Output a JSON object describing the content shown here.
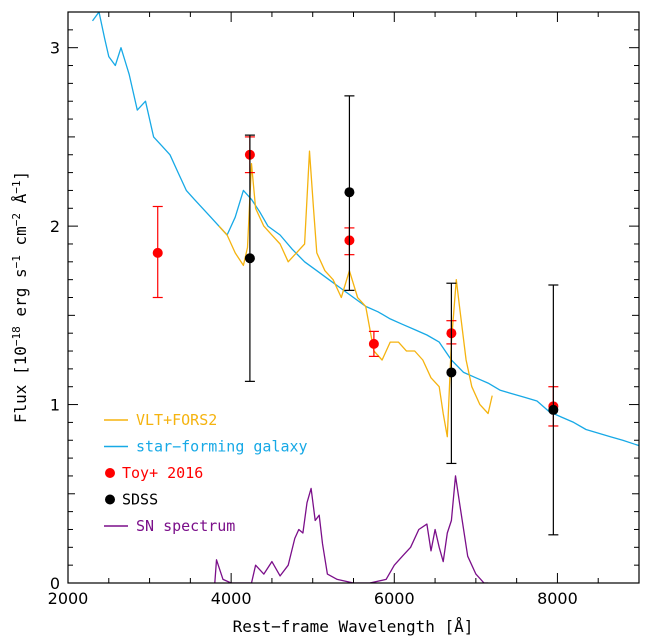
{
  "chart_data": {
    "type": "line",
    "title": "",
    "xlabel": "Rest−frame Wavelength [Å]",
    "ylabel_parts": [
      "Flux [10",
      "−18",
      " erg s",
      "−1",
      " cm",
      "−2",
      " Å",
      "−1",
      "]"
    ],
    "xlim": [
      2000,
      9000
    ],
    "ylim": [
      0,
      3.2
    ],
    "xticks": [
      2000,
      4000,
      6000,
      8000
    ],
    "xtick_labels": [
      "2000",
      "4000",
      "6000",
      "8000"
    ],
    "yticks": [
      0,
      1,
      2,
      3
    ],
    "ytick_labels": [
      "0",
      "1",
      "2",
      "3"
    ],
    "grid": false,
    "legend_position": "bottom-left",
    "colors": {
      "vlt": "#f5b30f",
      "galaxy": "#17a9e6",
      "toy": "#ff0000",
      "sdss": "#000000",
      "sn": "#7b0f8a"
    },
    "legend": [
      {
        "label": "VLT+FORS2",
        "kind": "line",
        "color": "#f5b30f"
      },
      {
        "label": "star−forming galaxy",
        "kind": "line",
        "color": "#17a9e6"
      },
      {
        "label": "Toy+ 2016",
        "kind": "dot",
        "color": "#ff0000"
      },
      {
        "label": "SDSS",
        "kind": "dot",
        "color": "#000000"
      },
      {
        "label": "SN spectrum",
        "kind": "line",
        "color": "#7b0f8a"
      }
    ],
    "series": [
      {
        "name": "star−forming galaxy",
        "kind": "line",
        "x": [
          2300,
          2380,
          2450,
          2500,
          2580,
          2650,
          2750,
          2850,
          2950,
          3050,
          3150,
          3250,
          3350,
          3450,
          3550,
          3650,
          3750,
          3850,
          3950,
          4050,
          4150,
          4250,
          4350,
          4450,
          4600,
          4750,
          4900,
          5050,
          5200,
          5350,
          5500,
          5650,
          5800,
          5950,
          6100,
          6250,
          6400,
          6550,
          6700,
          6850,
          7000,
          7150,
          7300,
          7450,
          7600,
          7750,
          7900,
          8050,
          8200,
          8350,
          8500,
          8650,
          8800,
          9000
        ],
        "y": [
          3.15,
          3.2,
          3.05,
          2.95,
          2.9,
          3.0,
          2.85,
          2.65,
          2.7,
          2.5,
          2.45,
          2.4,
          2.3,
          2.2,
          2.15,
          2.1,
          2.05,
          2.0,
          1.95,
          2.05,
          2.2,
          2.15,
          2.08,
          2.0,
          1.95,
          1.87,
          1.8,
          1.75,
          1.7,
          1.65,
          1.6,
          1.55,
          1.52,
          1.48,
          1.45,
          1.42,
          1.39,
          1.35,
          1.25,
          1.18,
          1.15,
          1.12,
          1.08,
          1.06,
          1.04,
          1.02,
          0.96,
          0.93,
          0.9,
          0.86,
          0.84,
          0.82,
          0.8,
          0.77
        ]
      },
      {
        "name": "VLT+FORS2",
        "kind": "line",
        "x": [
          3850,
          3950,
          4050,
          4150,
          4200,
          4250,
          4300,
          4400,
          4500,
          4600,
          4700,
          4800,
          4900,
          4960,
          5010,
          5050,
          5150,
          5250,
          5350,
          5450,
          5550,
          5650,
          5750,
          5850,
          5950,
          6050,
          6150,
          6250,
          6350,
          6450,
          6550,
          6600,
          6650,
          6700,
          6760,
          6800,
          6880,
          6950,
          7050,
          7150,
          7200
        ],
        "y": [
          2.0,
          1.95,
          1.85,
          1.78,
          1.88,
          2.35,
          2.1,
          2.0,
          1.95,
          1.9,
          1.8,
          1.85,
          1.9,
          2.42,
          2.1,
          1.85,
          1.75,
          1.7,
          1.6,
          1.75,
          1.6,
          1.55,
          1.3,
          1.25,
          1.35,
          1.35,
          1.3,
          1.3,
          1.25,
          1.15,
          1.1,
          0.95,
          0.82,
          1.35,
          1.7,
          1.55,
          1.25,
          1.1,
          1.0,
          0.95,
          1.05
        ]
      },
      {
        "name": "SN spectrum",
        "kind": "line",
        "x": [
          3800,
          3820,
          3900,
          4000,
          4100,
          4250,
          4300,
          4400,
          4500,
          4600,
          4700,
          4780,
          4830,
          4880,
          4930,
          4980,
          5030,
          5080,
          5120,
          5180,
          5300,
          5500,
          5700,
          5900,
          6000,
          6100,
          6200,
          6300,
          6400,
          6450,
          6500,
          6550,
          6600,
          6650,
          6700,
          6750,
          6800,
          6850,
          6900,
          7000,
          7100,
          7150
        ],
        "y": [
          0.0,
          0.13,
          0.02,
          0.0,
          0.0,
          0.0,
          0.1,
          0.05,
          0.12,
          0.04,
          0.1,
          0.25,
          0.3,
          0.28,
          0.45,
          0.53,
          0.35,
          0.38,
          0.22,
          0.05,
          0.02,
          0.0,
          0.0,
          0.02,
          0.1,
          0.15,
          0.2,
          0.3,
          0.33,
          0.18,
          0.3,
          0.2,
          0.12,
          0.28,
          0.35,
          0.6,
          0.45,
          0.3,
          0.15,
          0.05,
          0.0,
          0.0
        ]
      },
      {
        "name": "Toy+ 2016",
        "kind": "points",
        "points": [
          {
            "x": 3100,
            "y": 1.85,
            "ylo": 1.6,
            "yhi": 2.11
          },
          {
            "x": 4230,
            "y": 2.4,
            "ylo": 2.3,
            "yhi": 2.5
          },
          {
            "x": 5450,
            "y": 1.92,
            "ylo": 1.84,
            "yhi": 1.99
          },
          {
            "x": 5750,
            "y": 1.34,
            "ylo": 1.27,
            "yhi": 1.41
          },
          {
            "x": 6700,
            "y": 1.4,
            "ylo": 1.34,
            "yhi": 1.47
          },
          {
            "x": 7950,
            "y": 0.99,
            "ylo": 0.88,
            "yhi": 1.1
          }
        ]
      },
      {
        "name": "SDSS",
        "kind": "points",
        "points": [
          {
            "x": 4230,
            "y": 1.82,
            "ylo": 1.13,
            "yhi": 2.51
          },
          {
            "x": 5450,
            "y": 2.19,
            "ylo": 1.64,
            "yhi": 2.73
          },
          {
            "x": 6700,
            "y": 1.18,
            "ylo": 0.67,
            "yhi": 1.68
          },
          {
            "x": 7950,
            "y": 0.97,
            "ylo": 0.27,
            "yhi": 1.67
          }
        ]
      }
    ]
  }
}
